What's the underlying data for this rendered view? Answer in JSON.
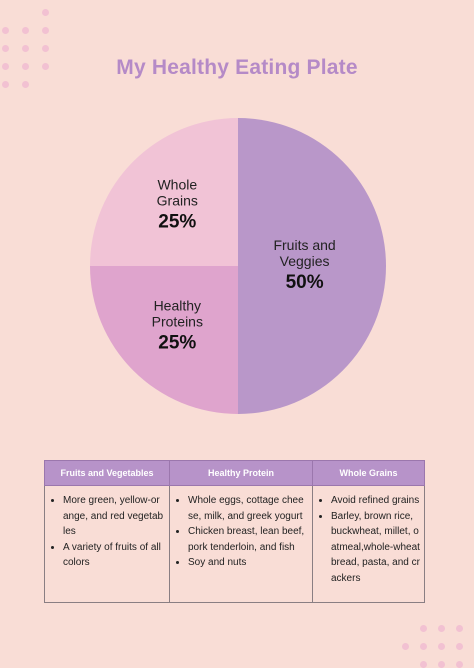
{
  "title": "My Healthy Eating Plate",
  "colors": {
    "background": "#f9ddd6",
    "title": "#b58ac7",
    "fruits_veggies": "#b997c9",
    "whole_grains": "#f1c3d6",
    "healthy_proteins": "#dfa4cd",
    "table_header": "#b793c9"
  },
  "chart_data": {
    "type": "pie",
    "title": "My Healthy Eating Plate",
    "slices": [
      {
        "name": "Fruits and Veggies",
        "label_lines": [
          "Fruits and",
          "Veggies"
        ],
        "value": 50,
        "value_label": "50%",
        "color": "#b997c9"
      },
      {
        "name": "Healthy Proteins",
        "label_lines": [
          "Healthy",
          "Proteins"
        ],
        "value": 25,
        "value_label": "25%",
        "color": "#dfa4cd"
      },
      {
        "name": "Whole Grains",
        "label_lines": [
          "Whole",
          "Grains"
        ],
        "value": 25,
        "value_label": "25%",
        "color": "#f1c3d6"
      }
    ],
    "legend": "none"
  },
  "table": {
    "headers": [
      "Fruits and Vegetables",
      "Healthy Protein",
      "Whole Grains"
    ],
    "columns": [
      [
        "More green, yellow-orange, and red vegetables",
        "A variety of fruits of all colors"
      ],
      [
        "Whole eggs, cottage cheese, milk, and greek yogurt",
        "Chicken breast, lean beef, pork tenderloin, and fish",
        "Soy and nuts"
      ],
      [
        "Avoid refined grains",
        "Barley, brown rice, buckwheat, millet, oatmeal,whole-wheat bread, pasta, and crackers"
      ]
    ]
  }
}
